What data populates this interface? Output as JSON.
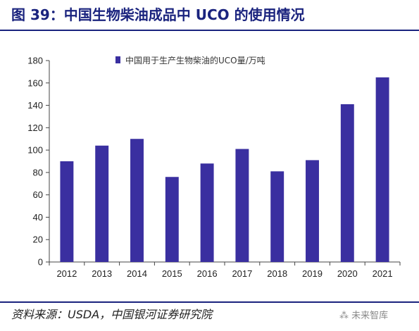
{
  "header": {
    "title": "图 39：中国生物柴油成品中 UCO 的使用情况"
  },
  "footer": {
    "source": "资料来源：USDA，中国银河证券研究院",
    "watermark": "未来智库",
    "watermark_icon": "watermark-logo-icon"
  },
  "colors": {
    "bar": "#3a2fa0",
    "title": "#1a237e",
    "axis": "#444444"
  },
  "chart_data": {
    "type": "bar",
    "title": "",
    "xlabel": "",
    "ylabel": "",
    "categories": [
      "2012",
      "2013",
      "2014",
      "2015",
      "2016",
      "2017",
      "2018",
      "2019",
      "2020",
      "2021"
    ],
    "series": [
      {
        "name": "中国用于生产生物柴油的UCO量/万吨",
        "values": [
          90,
          104,
          110,
          76,
          88,
          101,
          81,
          91,
          141,
          165
        ]
      }
    ],
    "ylim": [
      0,
      180
    ],
    "yticks": [
      0,
      20,
      40,
      60,
      80,
      100,
      120,
      140,
      160,
      180
    ],
    "grid": false,
    "legend_position": "top-left"
  }
}
